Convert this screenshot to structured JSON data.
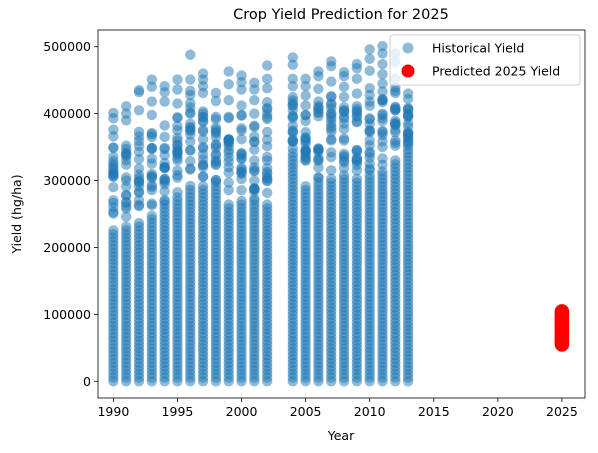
{
  "chart_data": {
    "type": "scatter",
    "title": "Crop Yield Prediction for 2025",
    "xlabel": "Year",
    "ylabel": "Yield (hg/ha)",
    "xlim": [
      1988.8,
      2026.8
    ],
    "ylim": [
      -25000,
      525000
    ],
    "x_ticks": [
      1990,
      1995,
      2000,
      2005,
      2010,
      2015,
      2020,
      2025
    ],
    "y_ticks": [
      0,
      100000,
      200000,
      300000,
      400000,
      500000
    ],
    "grid": false,
    "legend_position": "top-right",
    "series": [
      {
        "name": "Historical Yield",
        "color": "#1f77b4",
        "opacity": 0.5,
        "marker": "circle",
        "years": [
          1990,
          1991,
          1992,
          1993,
          1994,
          1995,
          1996,
          1997,
          1998,
          1999,
          2000,
          2001,
          2002,
          2004,
          2005,
          2006,
          2007,
          2008,
          2009,
          2010,
          2011,
          2012,
          2013
        ],
        "max_yield": [
          401000,
          411000,
          435000,
          451000,
          441000,
          451000,
          488000,
          460000,
          431000,
          463000,
          457000,
          446000,
          472000,
          484000,
          452000,
          463000,
          478000,
          462000,
          474000,
          496000,
          501000,
          490000,
          430000
        ],
        "outliers": [
          [
            1990,
            393000
          ],
          [
            1990,
            376000
          ],
          [
            1990,
            366000
          ],
          [
            1990,
            349000
          ],
          [
            1990,
            321000
          ],
          [
            1991,
            400000
          ],
          [
            1991,
            390000
          ],
          [
            1991,
            352000
          ],
          [
            1991,
            337000
          ],
          [
            1992,
            432000
          ],
          [
            1992,
            405000
          ],
          [
            1992,
            366000
          ],
          [
            1992,
            332000
          ],
          [
            1993,
            440000
          ],
          [
            1993,
            418000
          ],
          [
            1993,
            398000
          ],
          [
            1993,
            371000
          ],
          [
            1994,
            432000
          ],
          [
            1994,
            418000
          ],
          [
            1994,
            347000
          ],
          [
            1994,
            338000
          ],
          [
            1995,
            436000
          ],
          [
            1995,
            415000
          ],
          [
            1995,
            394000
          ],
          [
            1995,
            375000
          ],
          [
            1995,
            352000
          ],
          [
            1996,
            451000
          ],
          [
            1996,
            434000
          ],
          [
            1996,
            409000
          ],
          [
            1996,
            375000
          ],
          [
            1997,
            451000
          ],
          [
            1997,
            441000
          ],
          [
            1997,
            431000
          ],
          [
            1997,
            400000
          ],
          [
            1997,
            339000
          ],
          [
            1998,
            419000
          ],
          [
            1998,
            395000
          ],
          [
            1998,
            371000
          ],
          [
            1998,
            352000
          ],
          [
            1999,
            444000
          ],
          [
            1999,
            420000
          ],
          [
            1999,
            395000
          ],
          [
            1999,
            352000
          ],
          [
            2000,
            447000
          ],
          [
            2000,
            436000
          ],
          [
            2000,
            412000
          ],
          [
            2000,
            398000
          ],
          [
            2001,
            436000
          ],
          [
            2001,
            420000
          ],
          [
            2001,
            400000
          ],
          [
            2001,
            382000
          ],
          [
            2002,
            452000
          ],
          [
            2002,
            438000
          ],
          [
            2002,
            417000
          ],
          [
            2002,
            392000
          ],
          [
            2002,
            361000
          ],
          [
            2004,
            473000
          ],
          [
            2004,
            452000
          ],
          [
            2004,
            441000
          ],
          [
            2004,
            405000
          ],
          [
            2004,
            361000
          ],
          [
            2005,
            441000
          ],
          [
            2005,
            427000
          ],
          [
            2005,
            412000
          ],
          [
            2005,
            389000
          ],
          [
            2005,
            355000
          ],
          [
            2006,
            456000
          ],
          [
            2006,
            437000
          ],
          [
            2006,
            418000
          ],
          [
            2006,
            396000
          ],
          [
            2007,
            471000
          ],
          [
            2007,
            448000
          ],
          [
            2007,
            426000
          ],
          [
            2007,
            408000
          ],
          [
            2008,
            456000
          ],
          [
            2008,
            440000
          ],
          [
            2008,
            425000
          ],
          [
            2008,
            404000
          ],
          [
            2009,
            468000
          ],
          [
            2009,
            452000
          ],
          [
            2009,
            430000
          ],
          [
            2009,
            411000
          ],
          [
            2010,
            482000
          ],
          [
            2010,
            464000
          ],
          [
            2010,
            438000
          ],
          [
            2010,
            418000
          ],
          [
            2011,
            490000
          ],
          [
            2011,
            474000
          ],
          [
            2011,
            459000
          ],
          [
            2011,
            433000
          ],
          [
            2012,
            477000
          ],
          [
            2012,
            452000
          ],
          [
            2012,
            431000
          ],
          [
            2012,
            385000
          ],
          [
            2013,
            422000
          ],
          [
            2013,
            408000
          ],
          [
            2013,
            395000
          ],
          [
            2013,
            371000
          ]
        ],
        "dense_top": [
          230000,
          232000,
          240000,
          250000,
          268000,
          280000,
          290000,
          296000,
          300000,
          268000,
          270000,
          272000,
          268000,
          345000,
          296000,
          300000,
          305000,
          305000,
          305000,
          310000,
          318000,
          330000,
          355000
        ],
        "cluster_points": [
          [
            1990,
            260000
          ],
          [
            1990,
            290000
          ],
          [
            1990,
            306000
          ],
          [
            1991,
            268000
          ],
          [
            1991,
            300000
          ],
          [
            1992,
            282000
          ],
          [
            1992,
            318000
          ],
          [
            1993,
            290000
          ],
          [
            1993,
            310000
          ],
          [
            1994,
            300000
          ],
          [
            1994,
            320000
          ],
          [
            1995,
            308000
          ],
          [
            1995,
            330000
          ],
          [
            1996,
            318000
          ],
          [
            1996,
            345000
          ],
          [
            1997,
            320000
          ],
          [
            1997,
            350000
          ],
          [
            1998,
            325000
          ],
          [
            1999,
            320000
          ],
          [
            1999,
            342000
          ],
          [
            2000,
            310000
          ],
          [
            2000,
            340000
          ],
          [
            2001,
            300000
          ],
          [
            2001,
            330000
          ],
          [
            2002,
            310000
          ],
          [
            2002,
            330000
          ],
          [
            2004,
            360000
          ],
          [
            2004,
            382000
          ],
          [
            2005,
            330000
          ],
          [
            2005,
            345000
          ],
          [
            2006,
            330000
          ],
          [
            2006,
            348000
          ],
          [
            2007,
            335000
          ],
          [
            2007,
            360000
          ],
          [
            2008,
            340000
          ],
          [
            2008,
            360000
          ],
          [
            2009,
            330000
          ],
          [
            2009,
            345000
          ],
          [
            2010,
            340000
          ],
          [
            2010,
            360000
          ],
          [
            2011,
            350000
          ],
          [
            2011,
            368000
          ],
          [
            2012,
            360000
          ],
          [
            2012,
            372000
          ],
          [
            2013,
            365000
          ]
        ]
      },
      {
        "name": "Predicted 2025 Yield",
        "color": "#ff0000",
        "opacity": 1.0,
        "marker": "circle",
        "x": 2025,
        "y_range": [
          55000,
          105000
        ]
      }
    ]
  }
}
